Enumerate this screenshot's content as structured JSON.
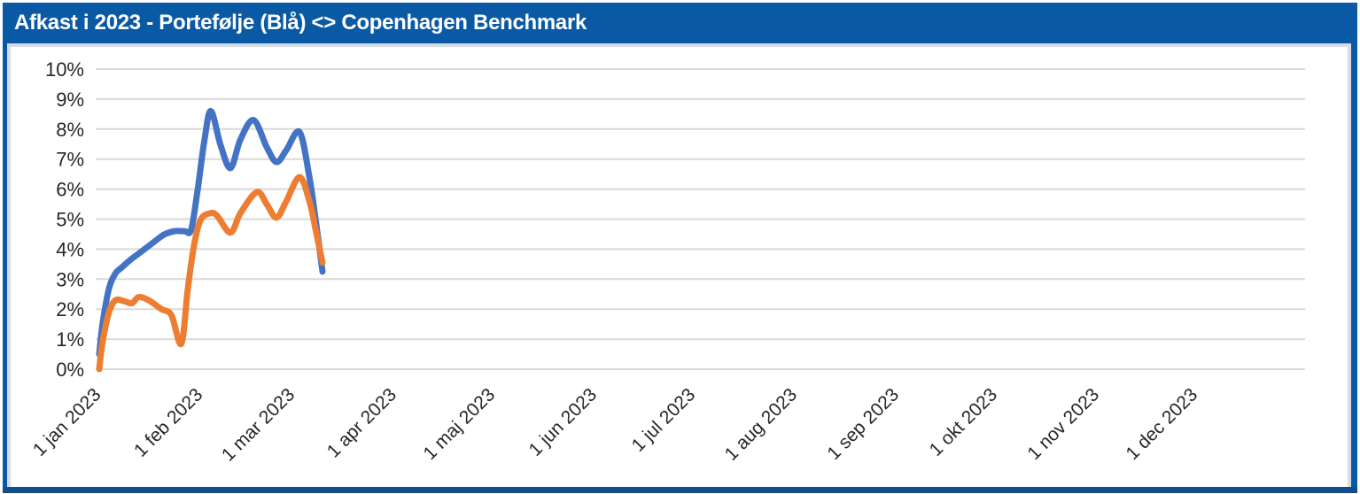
{
  "header": {
    "title": "Afkast i 2023 - Portefølje (Blå) <> Copenhagen Benchmark"
  },
  "colors": {
    "frame": "#0A59A4",
    "frame_bottom": "#114E8C",
    "inner_border": "#D6DCE4",
    "gridline": "#D9D9D9",
    "axis_text": "#262626",
    "portfolio_line": "#4472C4",
    "benchmark_line": "#ED7D31"
  },
  "chart_data": {
    "type": "line",
    "title": "Afkast i 2023 - Portefølje (Blå) <> Copenhagen Benchmark",
    "subtitle": "",
    "legend": "none",
    "grid": "horizontal",
    "smooth_lines": true,
    "y_axis": {
      "min": 0,
      "max": 10,
      "step": 1,
      "unit": "%",
      "tick_labels": [
        "0%",
        "1%",
        "2%",
        "3%",
        "4%",
        "5%",
        "6%",
        "7%",
        "8%",
        "9%",
        "10%"
      ]
    },
    "x_axis": {
      "unit": "date",
      "range_days": [
        0,
        367
      ],
      "ticks": [
        {
          "label": "1 jan 2023",
          "day": 0
        },
        {
          "label": "1 feb 2023",
          "day": 31
        },
        {
          "label": "1 mar 2023",
          "day": 59
        },
        {
          "label": "1 apr 2023",
          "day": 90
        },
        {
          "label": "1 maj 2023",
          "day": 120
        },
        {
          "label": "1 jun 2023",
          "day": 151
        },
        {
          "label": "1 jul 2023",
          "day": 181
        },
        {
          "label": "1 aug 2023",
          "day": 212
        },
        {
          "label": "1 sep 2023",
          "day": 243
        },
        {
          "label": "1 okt 2023",
          "day": 273
        },
        {
          "label": "1 nov 2023",
          "day": 304
        },
        {
          "label": "1 dec 2023",
          "day": 334
        }
      ]
    },
    "series": [
      {
        "name": "Portefølje (Blå)",
        "color": "#4472C4",
        "days": [
          0,
          1,
          3,
          5,
          7,
          9,
          12,
          15,
          18,
          20,
          23,
          26,
          28,
          30,
          32,
          34,
          37,
          40,
          43,
          47,
          51,
          54,
          57,
          61,
          64,
          66,
          68
        ],
        "values_pct": [
          0.5,
          1.5,
          2.7,
          3.2,
          3.4,
          3.6,
          3.85,
          4.1,
          4.35,
          4.5,
          4.6,
          4.6,
          4.65,
          6.0,
          7.6,
          8.6,
          7.45,
          6.7,
          7.65,
          8.3,
          7.4,
          6.9,
          7.3,
          7.9,
          6.4,
          4.9,
          3.25
        ]
      },
      {
        "name": "Copenhagen Benchmark",
        "color": "#ED7D31",
        "days": [
          0,
          1,
          3,
          5,
          8,
          10,
          12,
          15,
          19,
          22,
          25,
          27,
          29,
          31,
          34,
          36,
          40,
          43,
          48,
          51,
          54,
          57,
          61,
          64,
          66,
          68
        ],
        "values_pct": [
          0.0,
          0.9,
          1.9,
          2.3,
          2.25,
          2.2,
          2.4,
          2.3,
          2.0,
          1.8,
          0.85,
          2.7,
          4.2,
          5.0,
          5.2,
          5.1,
          4.55,
          5.2,
          5.9,
          5.5,
          5.05,
          5.6,
          6.4,
          5.6,
          4.6,
          3.55
        ]
      }
    ]
  }
}
